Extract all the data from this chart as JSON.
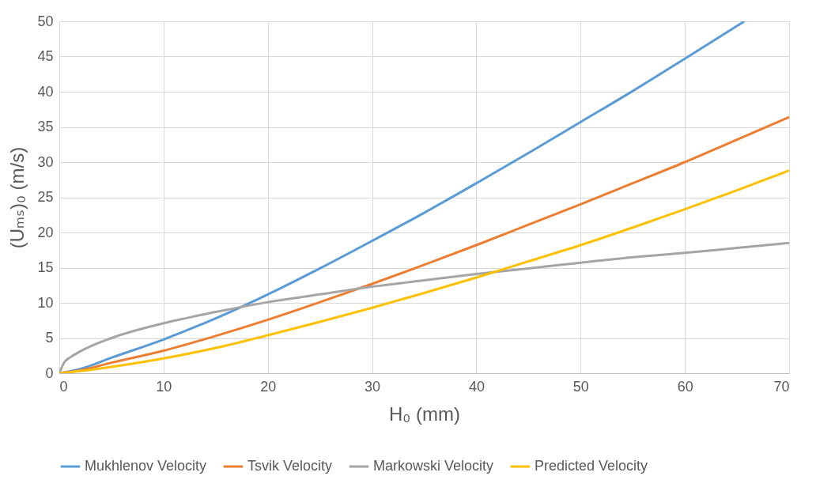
{
  "chart_data": {
    "type": "line",
    "xlabel": "H₀ (mm)",
    "ylabel": "(Uₘₛ)₀ (m/s)",
    "xlim": [
      0,
      70
    ],
    "ylim": [
      0,
      50
    ],
    "xticks": [
      0,
      10,
      20,
      30,
      40,
      50,
      60,
      70
    ],
    "yticks": [
      0,
      5,
      10,
      15,
      20,
      25,
      30,
      35,
      40,
      45,
      50
    ],
    "grid": true,
    "legend": "bottom",
    "marker": "none",
    "line_style": "solid",
    "series": [
      {
        "name": "Mukhlenov Velocity",
        "color": "#5b9bd5",
        "x": [
          0,
          2,
          5,
          10,
          15,
          20,
          25,
          30,
          35,
          40,
          45,
          50,
          55,
          60,
          65.7
        ],
        "values": [
          0,
          0.6,
          2.2,
          4.8,
          7.8,
          11.2,
          14.9,
          18.8,
          22.8,
          27,
          31.3,
          35.7,
          40.1,
          44.7,
          50
        ]
      },
      {
        "name": "Tsvik Velocity",
        "color": "#ed7d31",
        "x": [
          0,
          2,
          5,
          10,
          15,
          20,
          25,
          30,
          35,
          40,
          45,
          50,
          55,
          60,
          65,
          70
        ],
        "values": [
          0,
          0.4,
          1.5,
          3.2,
          5.3,
          7.6,
          10.1,
          12.7,
          15.4,
          18.2,
          21.1,
          24,
          27,
          30,
          33.2,
          36.4
        ]
      },
      {
        "name": "Markowski Velocity",
        "color": "#a5a5a5",
        "x": [
          0,
          0.5,
          1,
          2,
          5,
          10,
          15,
          20,
          25,
          30,
          35,
          40,
          45,
          50,
          55,
          60,
          65,
          70
        ],
        "values": [
          0,
          1.6,
          2.2,
          3.1,
          5,
          7.1,
          8.7,
          10.1,
          11.2,
          12.3,
          13.2,
          14.1,
          14.9,
          15.7,
          16.5,
          17.1,
          17.8,
          18.5
        ]
      },
      {
        "name": "Predicted Velocity",
        "color": "#ffc000",
        "x": [
          0,
          2,
          5,
          10,
          15,
          20,
          25,
          30,
          35,
          40,
          45,
          50,
          55,
          60,
          65,
          70
        ],
        "values": [
          0,
          0.3,
          0.9,
          2.1,
          3.6,
          5.4,
          7.3,
          9.3,
          11.4,
          13.6,
          15.9,
          18.2,
          20.7,
          23.3,
          26,
          28.8
        ]
      }
    ]
  }
}
